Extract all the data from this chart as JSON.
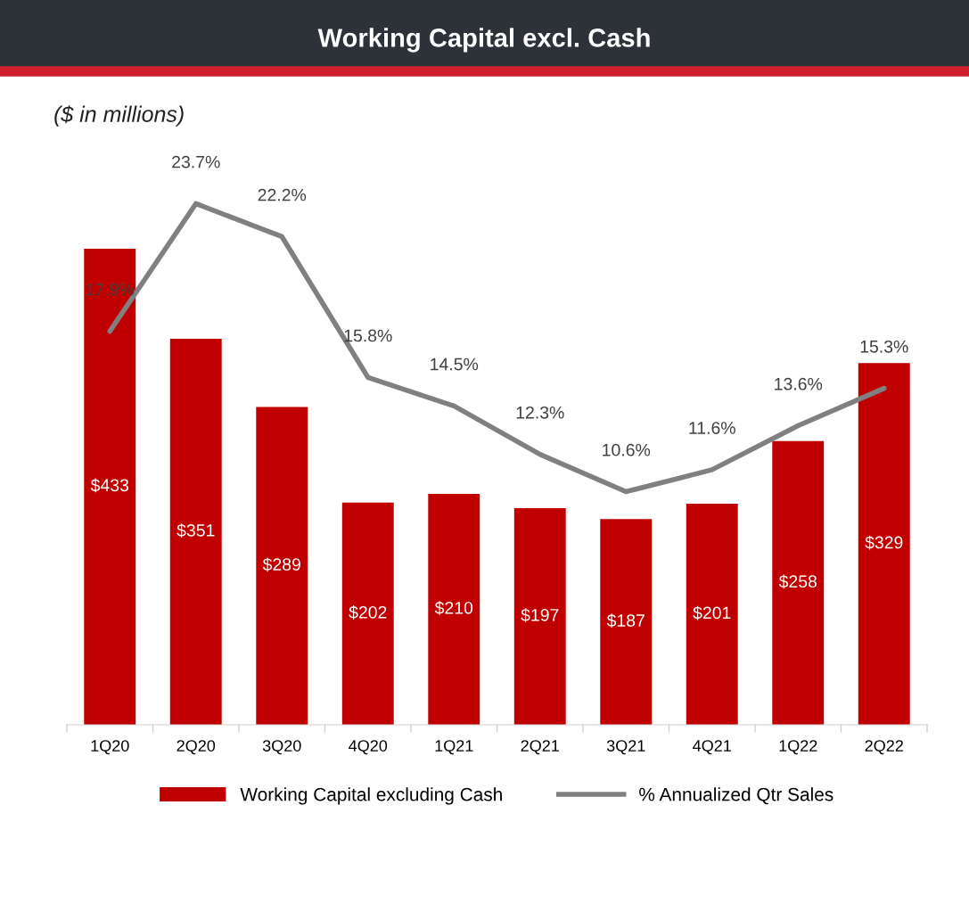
{
  "chart_data": {
    "type": "bar",
    "title": "Working Capital excl. Cash",
    "subtitle": "($ in millions)",
    "categories": [
      "1Q20",
      "2Q20",
      "3Q20",
      "4Q20",
      "1Q21",
      "2Q21",
      "3Q21",
      "4Q21",
      "1Q22",
      "2Q22"
    ],
    "series": [
      {
        "name": "Working Capital excluding Cash",
        "color": "#c00000",
        "values": [
          433,
          351,
          289,
          202,
          210,
          197,
          187,
          201,
          258,
          329
        ],
        "value_labels": [
          "$433",
          "$351",
          "$289",
          "$202",
          "$210",
          "$197",
          "$187",
          "$201",
          "$258",
          "$329"
        ]
      },
      {
        "name": "% Annualized Qtr Sales",
        "type": "line",
        "axis": "y2",
        "color": "#808080",
        "values": [
          17.9,
          23.7,
          22.2,
          15.8,
          14.5,
          12.3,
          10.6,
          11.6,
          13.6,
          15.3
        ],
        "value_labels": [
          "17.9%",
          "23.7%",
          "22.2%",
          "15.8%",
          "14.5%",
          "12.3%",
          "10.6%",
          "11.6%",
          "13.6%",
          "15.3%"
        ]
      }
    ],
    "legend": "bottom",
    "marker": "none",
    "line_style": "solid"
  }
}
